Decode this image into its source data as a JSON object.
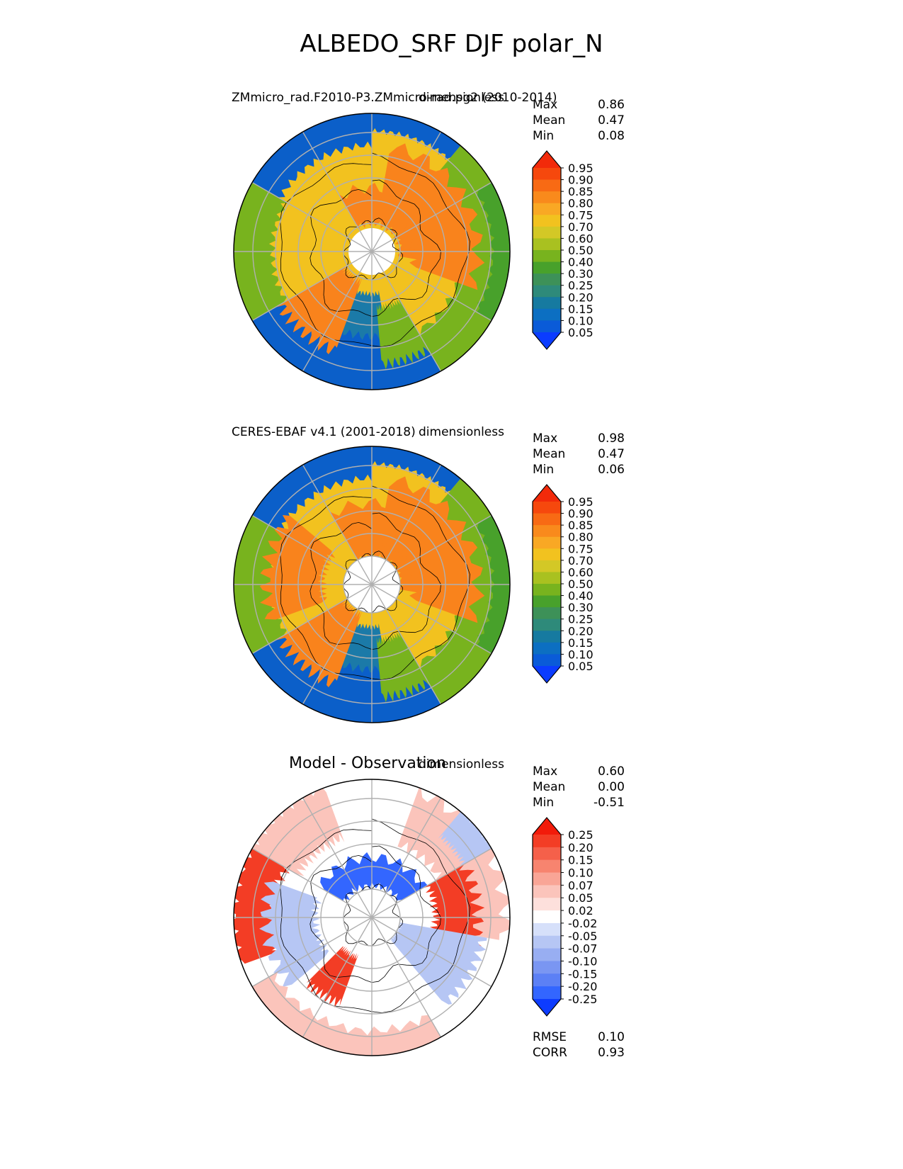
{
  "title": "ALBEDO_SRF DJF polar_N",
  "chart_data": [
    {
      "type": "heatmap",
      "projection": "north polar stereographic",
      "title": "ZMmicro_rad.F2010-P3.ZMmicro-rad.pg2 (2010-2014)",
      "units": "dimensionless",
      "stats": {
        "Max": "0.86",
        "Mean": "0.47",
        "Min": "0.08"
      },
      "colorbar": {
        "levels": [
          "0.05",
          "0.10",
          "0.15",
          "0.20",
          "0.25",
          "0.30",
          "0.40",
          "0.50",
          "0.60",
          "0.70",
          "0.75",
          "0.80",
          "0.85",
          "0.90",
          "0.95"
        ],
        "colors": [
          "#0b3cff",
          "#0a5bd8",
          "#0c6fc2",
          "#167aa0",
          "#2e8a7a",
          "#3d9158",
          "#48a12b",
          "#78b31e",
          "#a9c120",
          "#d3c826",
          "#f2c21f",
          "#f9a824",
          "#f98a1c",
          "#f86a14",
          "#f6480d",
          "#f22a0a"
        ],
        "extend": "both"
      }
    },
    {
      "type": "heatmap",
      "projection": "north polar stereographic",
      "title": "CERES-EBAF v4.1 (2001-2018)",
      "units": "dimensionless",
      "stats": {
        "Max": "0.98",
        "Mean": "0.47",
        "Min": "0.06"
      },
      "colorbar": {
        "levels": [
          "0.05",
          "0.10",
          "0.15",
          "0.20",
          "0.25",
          "0.30",
          "0.40",
          "0.50",
          "0.60",
          "0.70",
          "0.75",
          "0.80",
          "0.85",
          "0.90",
          "0.95"
        ],
        "colors": [
          "#0b3cff",
          "#0a5bd8",
          "#0c6fc2",
          "#167aa0",
          "#2e8a7a",
          "#3d9158",
          "#48a12b",
          "#78b31e",
          "#a9c120",
          "#d3c826",
          "#f2c21f",
          "#f9a824",
          "#f98a1c",
          "#f86a14",
          "#f6480d",
          "#f22a0a"
        ],
        "extend": "both"
      }
    },
    {
      "type": "heatmap",
      "projection": "north polar stereographic",
      "title": "Model - Observation",
      "units": "dimensionless",
      "stats": {
        "Max": "0.60",
        "Mean": "0.00",
        "Min": "-0.51"
      },
      "metrics": {
        "RMSE": "0.10",
        "CORR": "0.93"
      },
      "colorbar": {
        "levels": [
          "-0.25",
          "-0.20",
          "-0.15",
          "-0.10",
          "-0.07",
          "-0.05",
          "-0.02",
          "0.02",
          "0.05",
          "0.07",
          "0.10",
          "0.15",
          "0.20",
          "0.25"
        ],
        "colors": [
          "#0d3cff",
          "#3366ff",
          "#5c80f5",
          "#7a96f2",
          "#98aef2",
          "#b6c6f4",
          "#d6e0fa",
          "#ffffff",
          "#fde0dc",
          "#fbc4bb",
          "#f9a596",
          "#f7846f",
          "#f5604a",
          "#f33d25",
          "#f21b0a"
        ],
        "extend": "both"
      }
    }
  ],
  "palettes": {
    "albedo": {
      "ocean": "#0b5fc9",
      "ocean_edge": "#1b7aa8",
      "ice_high": "#f9831c",
      "ice_mid": "#f2c21f",
      "ice_low": "#d3c826",
      "land_green": "#78b31e",
      "land_dark_green": "#48a12b"
    },
    "diff": {
      "pos": "#f33d25",
      "pos_light": "#fbc4bb",
      "neg": "#3366ff",
      "neg_light": "#b6c6f4",
      "neutral": "#ffffff"
    },
    "grid": "#b0b0b0",
    "coast": "#000000"
  }
}
